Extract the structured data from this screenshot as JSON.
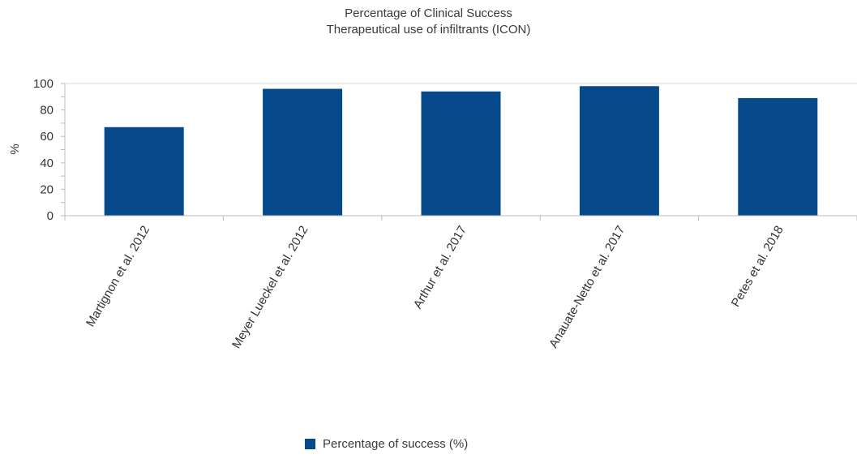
{
  "colors": {
    "bar": "#064a8b",
    "axis": "#bbbbbb",
    "gridline": "#d9d9d9"
  },
  "chart_data": {
    "type": "bar",
    "title": "Percentage of Clinical Success",
    "subtitle": "Therapeutical use of infiltrants (ICON)",
    "xlabel": "",
    "ylabel": "%",
    "ylim": [
      0,
      100
    ],
    "yticks": [
      0,
      20,
      40,
      60,
      80,
      100
    ],
    "categories": [
      "Martignon et al. 2012",
      "Meyer Lueckel et al. 2012",
      "Arthur et al. 2017",
      "Anauate-Netto et al. 2017",
      "Petes et al. 2018"
    ],
    "series": [
      {
        "name": "Percentage of success (%)",
        "values": [
          67,
          96,
          94,
          98,
          89
        ]
      }
    ],
    "grid": "top line only",
    "legend_position": "bottom-center"
  }
}
